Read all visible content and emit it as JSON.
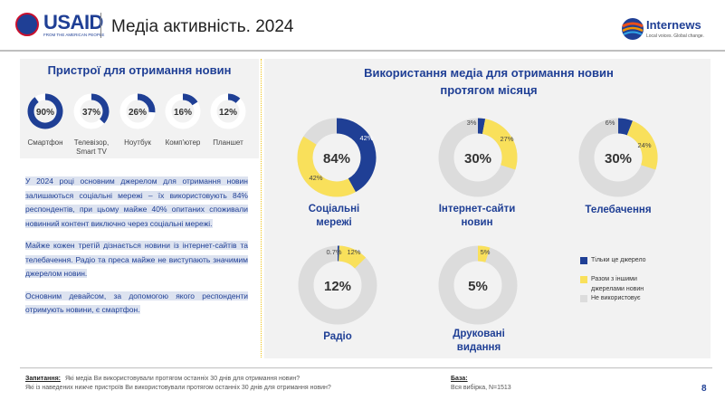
{
  "header": {
    "logo_text": "USAID",
    "logo_tagline": "FROM THE AMERICAN PEOPLE",
    "title": "Медіа активність. 2024",
    "partner_name": "Internews",
    "partner_tagline": "Local voices. Global change."
  },
  "colors": {
    "blue": "#1f3f95",
    "yellow": "#f9e05b",
    "grey": "#dcdcdc"
  },
  "devices": {
    "title": "Пристрої для отримання новин",
    "items": [
      {
        "label": "Смартфон",
        "value": 90,
        "display": "90%"
      },
      {
        "label": "Телевізор, Smart TV",
        "value": 37,
        "display": "37%"
      },
      {
        "label": "Ноутбук",
        "value": 26,
        "display": "26%"
      },
      {
        "label": "Комп'ютер",
        "value": 16,
        "display": "16%"
      },
      {
        "label": "Планшет",
        "value": 12,
        "display": "12%"
      }
    ]
  },
  "text": {
    "p1": "У 2024 році основним джерелом для отримання новин залишаються соціальні мережі – їх використовують 84% респондентів, при цьому майже 40% опитаних споживали новинний контент виключно через соціальні мережі.",
    "p2": "Майже кожен третій дізнається новини із інтернет-сайтів та телебачення. Радіо та преса майже не виступають значимим джерелом новин.",
    "p3": "Основним девайсом, за допомогою якого респонденти отримують новини, є смартфон."
  },
  "media": {
    "title_line1": "Використання медіа для отримання новин",
    "title_line2": "протягом місяця"
  },
  "legend": {
    "only": "Тільки це джерело",
    "with_others_line1": "Разом з іншими",
    "with_others_line2": "джерелами новин",
    "not_used": "Не використовує"
  },
  "chart_data": [
    {
      "type": "pie",
      "title": "Пристрої для отримання новин",
      "categories": [
        "Смартфон",
        "Телевізор, Smart TV",
        "Ноутбук",
        "Комп'ютер",
        "Планшет"
      ],
      "values": [
        90,
        37,
        26,
        16,
        12
      ]
    },
    {
      "type": "pie",
      "title": "Використання медіа для отримання новин протягом місяця",
      "categories": [
        "Тільки це джерело",
        "Разом з іншими джерелами новин",
        "Не використовує"
      ],
      "items": [
        {
          "label_line1": "Соціальні",
          "label_line2": "мережі",
          "total": "84%",
          "only": 42,
          "with_others": 42,
          "only_label": "42%",
          "with_label": "42%"
        },
        {
          "label_line1": "Інтернет-сайти",
          "label_line2": "новин",
          "total": "30%",
          "only": 3,
          "with_others": 27,
          "only_label": "3%",
          "with_label": "27%"
        },
        {
          "label_line1": "Телебачення",
          "label_line2": "",
          "total": "30%",
          "only": 6,
          "with_others": 24,
          "only_label": "6%",
          "with_label": "24%"
        },
        {
          "label_line1": "Радіо",
          "label_line2": "",
          "total": "12%",
          "only": 0.7,
          "with_others": 12,
          "only_label": "0.7%",
          "with_label": "12%"
        },
        {
          "label_line1": "Друковані",
          "label_line2": "видання",
          "total": "5%",
          "only": 0,
          "with_others": 5,
          "only_label": "",
          "with_label": "5%"
        }
      ]
    }
  ],
  "footer": {
    "question_label": "Запитання:",
    "question_1": "Які медіа Ви використовували протягом останніх 30 днів для отримання новин?",
    "question_2": "Які із наведених нижче пристроїв Ви використовували протягом останніх 30 днів для отримання новин?",
    "base_label": "База:",
    "base_value": "Вся вибірка,  N=1513",
    "page_number": "8"
  }
}
